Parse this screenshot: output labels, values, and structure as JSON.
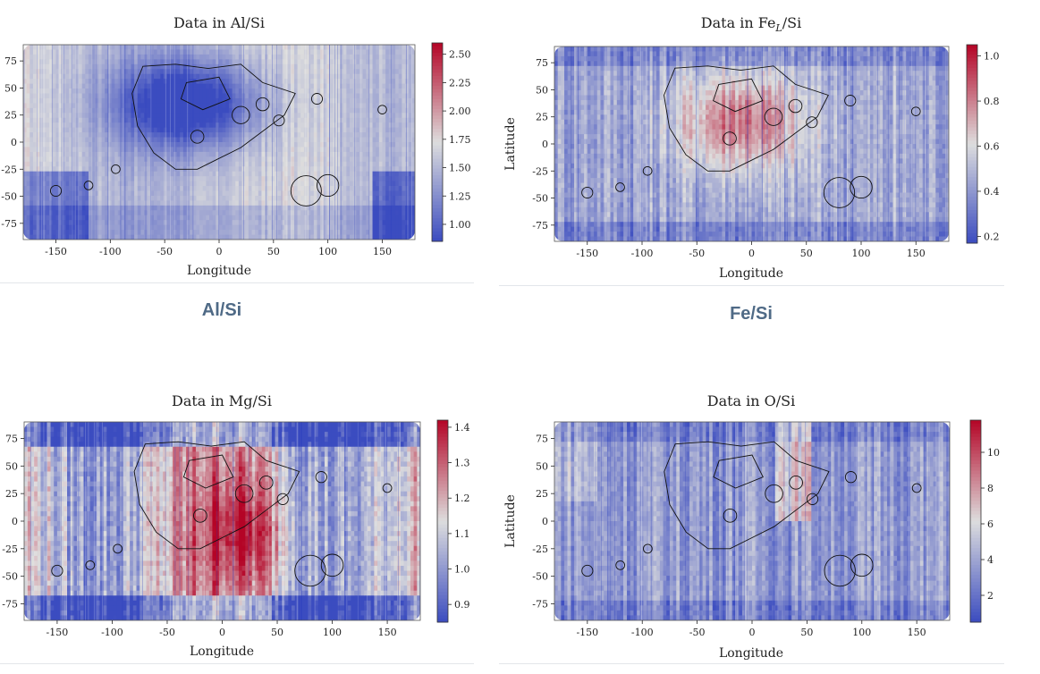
{
  "colors": {
    "cold": "#3b4cc0",
    "neutral": "#dddddd",
    "warm": "#b40426",
    "caption": "#4f6a86"
  },
  "captions": {
    "al": "Al/Si",
    "fe": "Fe/Si"
  },
  "chart_data": [
    {
      "type": "heatmap",
      "title": "Data in Al/Si",
      "xlabel": "Longitude",
      "ylabel": "",
      "xlim": [
        -180,
        180
      ],
      "ylim": [
        -90,
        90
      ],
      "x_ticks": [
        "-150",
        "-100",
        "-50",
        "0",
        "50",
        "100",
        "150"
      ],
      "y_ticks": [
        "75",
        "50",
        "25",
        "0",
        "-25",
        "-50",
        "-75"
      ],
      "colorbar": {
        "min": 0.85,
        "max": 2.6,
        "ticks": [
          "2.50",
          "2.25",
          "2.00",
          "1.75",
          "1.50",
          "1.25",
          "1.00"
        ]
      }
    },
    {
      "type": "heatmap",
      "title_main": "Data in Fe",
      "title_sub": "L",
      "title_end": "/Si",
      "xlabel": "Longitude",
      "ylabel": "Latitude",
      "xlim": [
        -180,
        180
      ],
      "ylim": [
        -90,
        90
      ],
      "x_ticks": [
        "-150",
        "-100",
        "-50",
        "0",
        "50",
        "100",
        "150"
      ],
      "y_ticks": [
        "75",
        "50",
        "25",
        "0",
        "-25",
        "-50",
        "-75"
      ],
      "colorbar": {
        "min": 0.17,
        "max": 1.05,
        "ticks": [
          "1.0",
          "0.8",
          "0.6",
          "0.4",
          "0.2"
        ]
      }
    },
    {
      "type": "heatmap",
      "title": "Data in Mg/Si",
      "xlabel": "Longitude",
      "ylabel": "",
      "xlim": [
        -180,
        180
      ],
      "ylim": [
        -90,
        90
      ],
      "x_ticks": [
        "-150",
        "-100",
        "-50",
        "0",
        "50",
        "100",
        "150"
      ],
      "y_ticks": [
        "75",
        "50",
        "25",
        "0",
        "-25",
        "-50",
        "-75"
      ],
      "colorbar": {
        "min": 0.85,
        "max": 1.42,
        "ticks": [
          "1.4",
          "1.3",
          "1.2",
          "1.1",
          "1.0",
          "0.9"
        ]
      }
    },
    {
      "type": "heatmap",
      "title": "Data in O/Si",
      "xlabel": "Longitude",
      "ylabel": "Latitude",
      "xlim": [
        -180,
        180
      ],
      "ylim": [
        -90,
        90
      ],
      "x_ticks": [
        "-150",
        "-100",
        "-50",
        "0",
        "50",
        "100",
        "150"
      ],
      "y_ticks": [
        "75",
        "50",
        "25",
        "0",
        "-25",
        "-50",
        "-75"
      ],
      "colorbar": {
        "min": 0.5,
        "max": 11.8,
        "ticks": [
          "10",
          "8",
          "6",
          "4",
          "2"
        ]
      }
    }
  ]
}
